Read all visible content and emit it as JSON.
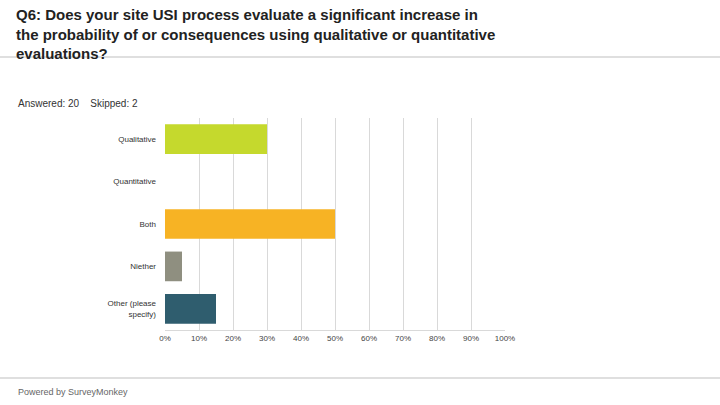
{
  "chart_data": {
    "type": "bar",
    "title": "Q6: Does your site USI process evaluate a significant increase in the probability of or consequences using qualitative or quantitative evaluations?",
    "subtitle": "Answered: 20    Skipped: 2",
    "categories": [
      "Qualitative",
      "Quantitative",
      "Both",
      "Niether",
      "Other (please specify)"
    ],
    "values": [
      30,
      0,
      50,
      5,
      15
    ],
    "colors": [
      "#c5d92d",
      "#2e7fb8",
      "#f7b324",
      "#8f8f80",
      "#2f5d6e"
    ],
    "orientation": "horizontal",
    "xlim": [
      0,
      100
    ],
    "xticks": [
      {
        "value": 0,
        "label": "0%"
      },
      {
        "value": 10,
        "label": "10%"
      },
      {
        "value": 20,
        "label": "20%"
      },
      {
        "value": 30,
        "label": "30%"
      },
      {
        "value": 40,
        "label": "40%"
      },
      {
        "value": 50,
        "label": "50%"
      },
      {
        "value": 60,
        "label": "60%"
      },
      {
        "value": 70,
        "label": "70%"
      },
      {
        "value": 80,
        "label": "80%"
      },
      {
        "value": 90,
        "label": "90%"
      },
      {
        "value": 100,
        "label": "100%"
      }
    ],
    "grid": true,
    "annotations": [
      "Powered by SurveyMonkey"
    ]
  }
}
